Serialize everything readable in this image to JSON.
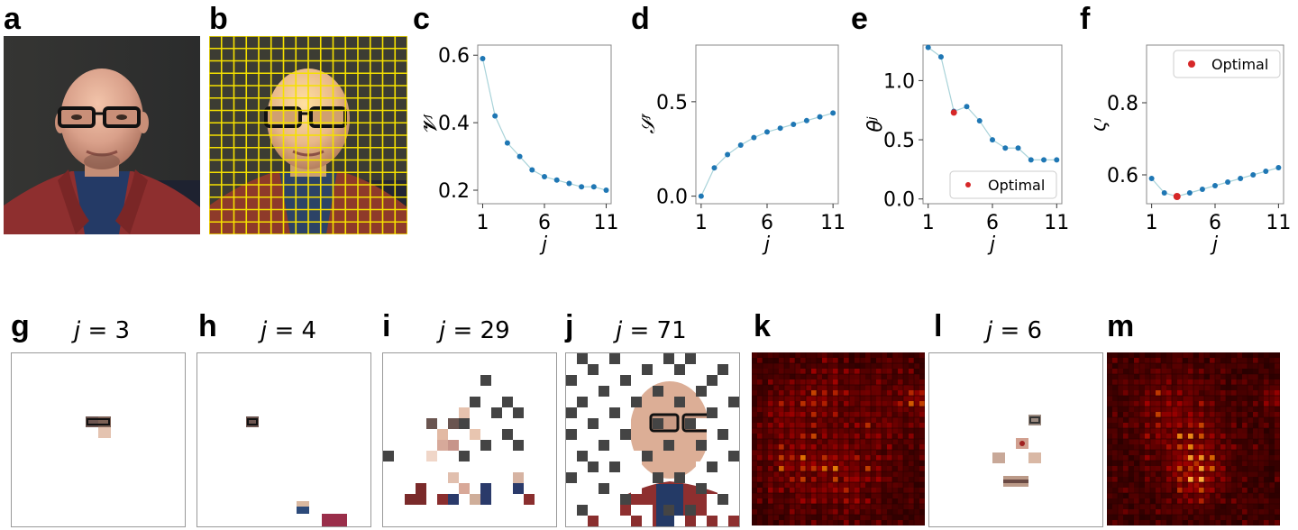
{
  "panels": {
    "a": "a",
    "b": "b",
    "c": "c",
    "d": "d",
    "e": "e",
    "f": "f",
    "g": "g",
    "h": "h",
    "i": "i",
    "j": "j",
    "k": "k",
    "l": "l",
    "m": "m"
  },
  "titles": {
    "g": {
      "var": "j",
      "eq": " = 3"
    },
    "h": {
      "var": "j",
      "eq": " = 4"
    },
    "i": {
      "var": "j",
      "eq": " = 29"
    },
    "j": {
      "var": "j",
      "eq": " = 71"
    },
    "l": {
      "var": "j",
      "eq": " = 6"
    }
  },
  "colors": {
    "series": "#1f77b4",
    "line": "#a9d3d9",
    "optimal": "#d62728",
    "grid_overlay": "#f5e000",
    "sweater": "#8e2f2f",
    "skin": "#d9a08a",
    "background_wall": "#3a3a38"
  },
  "chart_data": [
    {
      "id": "c",
      "type": "line",
      "xlabel": "j",
      "ylabel": "𝓥ʲ",
      "x": [
        1,
        2,
        3,
        4,
        5,
        6,
        7,
        8,
        9,
        10,
        11
      ],
      "xticks": [
        "1",
        "6",
        "11"
      ],
      "yticks": [
        "0.2",
        "0.4",
        "0.6"
      ],
      "xlim": [
        0.6,
        11.4
      ],
      "ylim": [
        0.16,
        0.63
      ],
      "series": [
        {
          "values": [
            0.59,
            0.42,
            0.34,
            0.3,
            0.26,
            0.24,
            0.23,
            0.22,
            0.21,
            0.21,
            0.2
          ]
        }
      ]
    },
    {
      "id": "d",
      "type": "line",
      "xlabel": "j",
      "ylabel": "𝒮ʲ",
      "x": [
        1,
        2,
        3,
        4,
        5,
        6,
        7,
        8,
        9,
        10,
        11
      ],
      "xticks": [
        "1",
        "6",
        "11"
      ],
      "yticks": [
        "0.0",
        "0.5"
      ],
      "xlim": [
        0.6,
        11.4
      ],
      "ylim": [
        -0.04,
        0.8
      ],
      "series": [
        {
          "values": [
            0.0,
            0.15,
            0.22,
            0.27,
            0.31,
            0.34,
            0.36,
            0.38,
            0.4,
            0.42,
            0.44
          ]
        }
      ]
    },
    {
      "id": "e",
      "type": "line",
      "xlabel": "j",
      "ylabel": "θʲ",
      "x": [
        1,
        2,
        3,
        4,
        5,
        6,
        7,
        8,
        9,
        10,
        11
      ],
      "xticks": [
        "1",
        "6",
        "11"
      ],
      "yticks": [
        "0.0",
        "0.5",
        "1.0"
      ],
      "xlim": [
        0.6,
        11.4
      ],
      "ylim": [
        -0.04,
        1.3
      ],
      "series": [
        {
          "values": [
            1.28,
            1.2,
            0.74,
            0.78,
            0.66,
            0.5,
            0.43,
            0.43,
            0.33,
            0.33,
            0.33
          ]
        }
      ],
      "optimal": {
        "x": 3,
        "y": 0.73
      },
      "legend": {
        "label": "Optimal",
        "position": "lower-right"
      }
    },
    {
      "id": "f",
      "type": "line",
      "xlabel": "j",
      "ylabel": "ζʲ",
      "x": [
        1,
        2,
        3,
        4,
        5,
        6,
        7,
        8,
        9,
        10,
        11
      ],
      "xticks": [
        "1",
        "6",
        "11"
      ],
      "yticks": [
        "0.6",
        "0.8"
      ],
      "xlim": [
        0.6,
        11.4
      ],
      "ylim": [
        0.52,
        0.96
      ],
      "series": [
        {
          "values": [
            0.59,
            0.55,
            0.54,
            0.55,
            0.56,
            0.57,
            0.58,
            0.59,
            0.6,
            0.61,
            0.62
          ]
        }
      ],
      "optimal": {
        "x": 3,
        "y": 0.54
      },
      "legend": {
        "label": "Optimal",
        "position": "upper-right"
      }
    }
  ]
}
